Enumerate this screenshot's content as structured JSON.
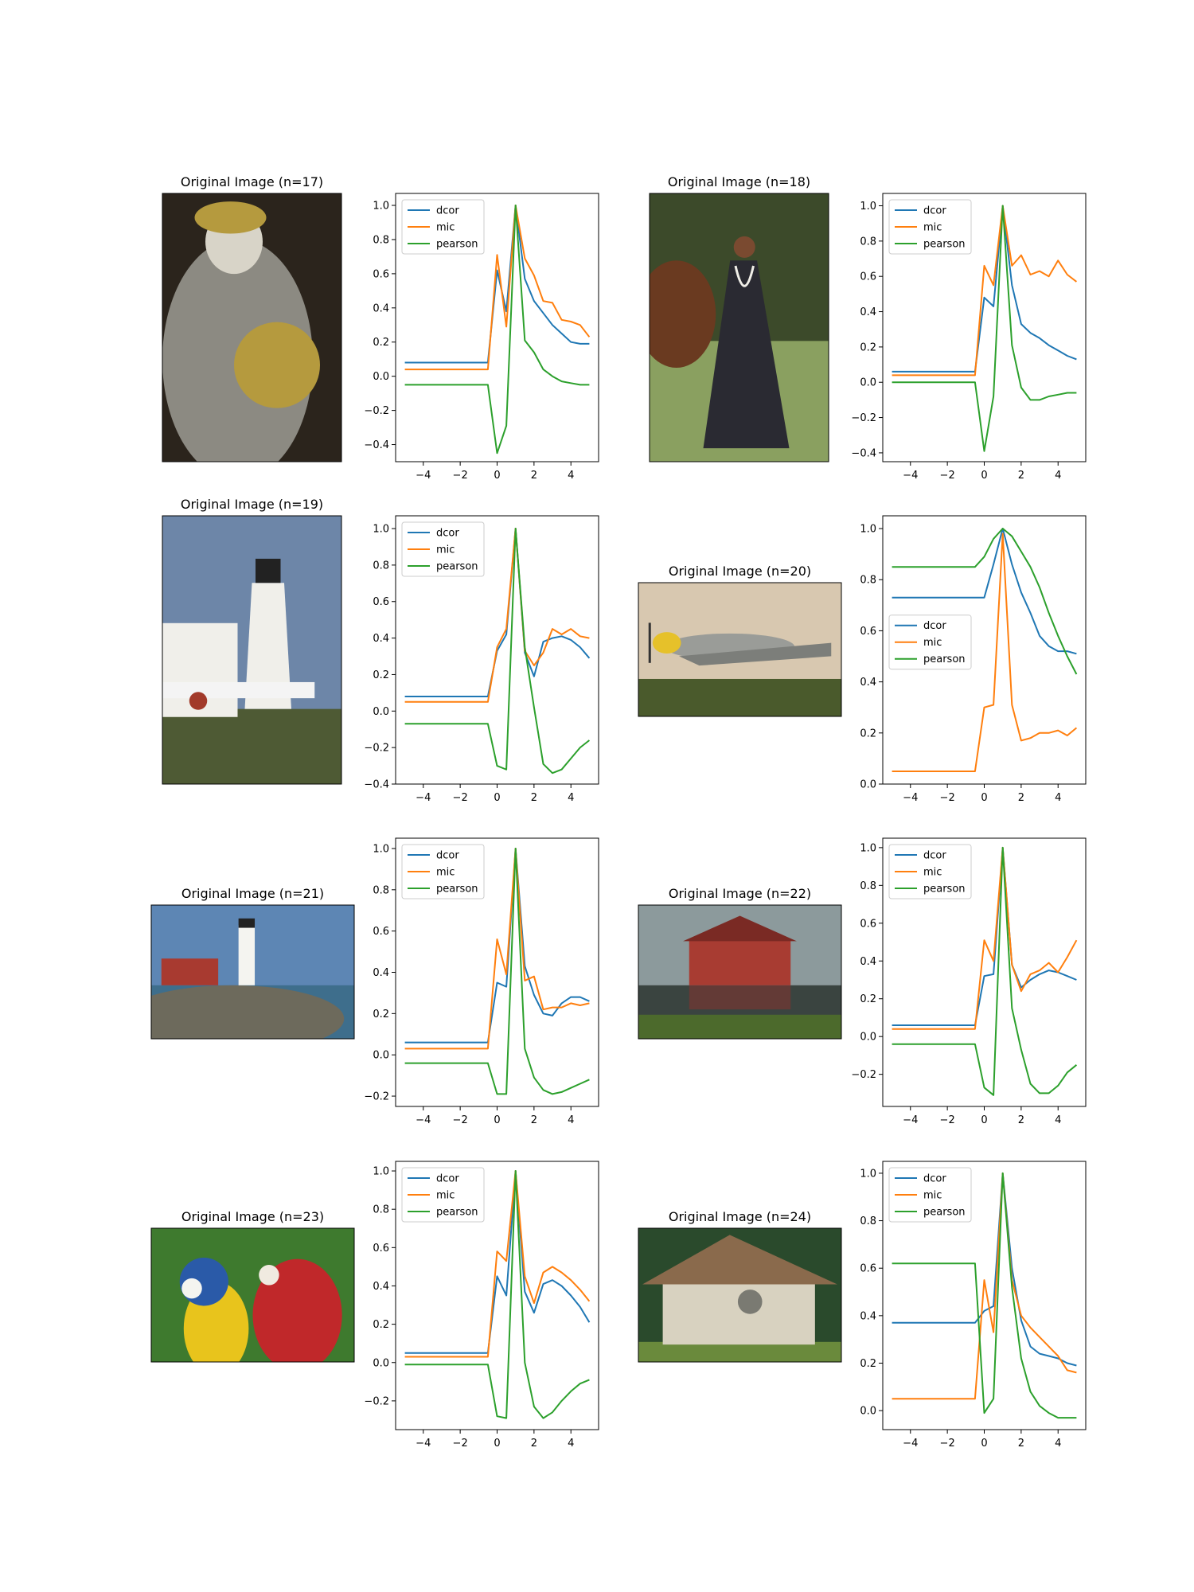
{
  "palette": {
    "dcor": "#1f77b4",
    "mic": "#ff7f0e",
    "pearson": "#2ca02c",
    "axis": "#000000",
    "background": "#ffffff"
  },
  "shared": {
    "x": [
      -5,
      -4.5,
      -4,
      -3.5,
      -3,
      -2.5,
      -2,
      -1.5,
      -1,
      -0.5,
      0,
      0.5,
      1,
      1.5,
      2,
      2.5,
      3,
      3.5,
      4,
      4.5,
      5
    ],
    "xticks": [
      -4,
      -2,
      0,
      2,
      4
    ],
    "xlim": [
      -5.5,
      5.5
    ],
    "series_names": [
      "dcor",
      "mic",
      "pearson"
    ]
  },
  "panels": [
    {
      "title": "Original Image (n=17)",
      "photo": {
        "icon": "statue-photo",
        "subject": "gold painted statue holding a golden globe",
        "colors": [
          "#2b241c",
          "#8c8a82",
          "#b59a3e",
          "#d8d4c8"
        ]
      },
      "chart_data": {
        "type": "line",
        "legend": "top-left",
        "ylim": [
          -0.5,
          1.07
        ],
        "yticks": [
          -0.4,
          -0.2,
          0.0,
          0.2,
          0.4,
          0.6,
          0.8,
          1.0
        ],
        "ytick_labels": [
          "−0.4",
          "−0.2",
          "0.0",
          "0.2",
          "0.4",
          "0.6",
          "0.8",
          "1.0"
        ],
        "series": [
          {
            "name": "dcor",
            "values": [
              0.08,
              0.08,
              0.08,
              0.08,
              0.08,
              0.08,
              0.08,
              0.08,
              0.08,
              0.08,
              0.62,
              0.38,
              1.0,
              0.57,
              0.44,
              0.37,
              0.3,
              0.25,
              0.2,
              0.19,
              0.19
            ]
          },
          {
            "name": "mic",
            "values": [
              0.04,
              0.04,
              0.04,
              0.04,
              0.04,
              0.04,
              0.04,
              0.04,
              0.04,
              0.04,
              0.71,
              0.29,
              1.0,
              0.69,
              0.59,
              0.44,
              0.43,
              0.33,
              0.32,
              0.3,
              0.23
            ]
          },
          {
            "name": "pearson",
            "values": [
              -0.05,
              -0.05,
              -0.05,
              -0.05,
              -0.05,
              -0.05,
              -0.05,
              -0.05,
              -0.05,
              -0.05,
              -0.45,
              -0.29,
              1.0,
              0.21,
              0.14,
              0.04,
              0.0,
              -0.03,
              -0.04,
              -0.05,
              -0.05
            ]
          }
        ]
      }
    },
    {
      "title": "Original Image (n=18)",
      "photo": {
        "icon": "woman-photo",
        "subject": "woman in dark dress with pearl necklace",
        "colors": [
          "#3c4a2a",
          "#6a3a20",
          "#2a2a32",
          "#8aa060"
        ]
      },
      "chart_data": {
        "type": "line",
        "legend": "top-left",
        "ylim": [
          -0.45,
          1.07
        ],
        "yticks": [
          -0.4,
          -0.2,
          0.0,
          0.2,
          0.4,
          0.6,
          0.8,
          1.0
        ],
        "ytick_labels": [
          "−0.4",
          "−0.2",
          "0.0",
          "0.2",
          "0.4",
          "0.6",
          "0.8",
          "1.0"
        ],
        "series": [
          {
            "name": "dcor",
            "values": [
              0.06,
              0.06,
              0.06,
              0.06,
              0.06,
              0.06,
              0.06,
              0.06,
              0.06,
              0.06,
              0.48,
              0.43,
              1.0,
              0.55,
              0.33,
              0.28,
              0.25,
              0.21,
              0.18,
              0.15,
              0.13
            ]
          },
          {
            "name": "mic",
            "values": [
              0.04,
              0.04,
              0.04,
              0.04,
              0.04,
              0.04,
              0.04,
              0.04,
              0.04,
              0.04,
              0.66,
              0.55,
              1.0,
              0.66,
              0.72,
              0.61,
              0.63,
              0.6,
              0.69,
              0.61,
              0.57
            ]
          },
          {
            "name": "pearson",
            "values": [
              0.0,
              0.0,
              0.0,
              0.0,
              0.0,
              0.0,
              0.0,
              0.0,
              0.0,
              0.0,
              -0.39,
              -0.08,
              1.0,
              0.21,
              -0.03,
              -0.1,
              -0.1,
              -0.08,
              -0.07,
              -0.06,
              -0.06
            ]
          }
        ]
      }
    },
    {
      "title": "Original Image (n=19)",
      "photo": {
        "icon": "lighthouse-photo",
        "subject": "white lighthouse with picket fence",
        "colors": [
          "#6d86a8",
          "#f0efea",
          "#4e5a34",
          "#a23a2a"
        ]
      },
      "chart_data": {
        "type": "line",
        "legend": "top-left",
        "ylim": [
          -0.4,
          1.07
        ],
        "yticks": [
          -0.4,
          -0.2,
          0.0,
          0.2,
          0.4,
          0.6,
          0.8,
          1.0
        ],
        "ytick_labels": [
          "−0.4",
          "−0.2",
          "0.0",
          "0.2",
          "0.4",
          "0.6",
          "0.8",
          "1.0"
        ],
        "series": [
          {
            "name": "dcor",
            "values": [
              0.08,
              0.08,
              0.08,
              0.08,
              0.08,
              0.08,
              0.08,
              0.08,
              0.08,
              0.08,
              0.33,
              0.42,
              1.0,
              0.32,
              0.19,
              0.38,
              0.4,
              0.41,
              0.39,
              0.35,
              0.29
            ]
          },
          {
            "name": "mic",
            "values": [
              0.05,
              0.05,
              0.05,
              0.05,
              0.05,
              0.05,
              0.05,
              0.05,
              0.05,
              0.05,
              0.35,
              0.45,
              1.0,
              0.33,
              0.25,
              0.32,
              0.45,
              0.42,
              0.45,
              0.41,
              0.4
            ]
          },
          {
            "name": "pearson",
            "values": [
              -0.07,
              -0.07,
              -0.07,
              -0.07,
              -0.07,
              -0.07,
              -0.07,
              -0.07,
              -0.07,
              -0.07,
              -0.3,
              -0.32,
              1.0,
              0.35,
              0.02,
              -0.29,
              -0.34,
              -0.32,
              -0.26,
              -0.2,
              -0.16
            ]
          }
        ]
      }
    },
    {
      "title": "Original Image (n=20)",
      "photo": {
        "icon": "airplane-photo",
        "subject": "propeller fighter plane with yellow nose on grass",
        "colors": [
          "#d8c8b0",
          "#8b8f7a",
          "#4a5a2c",
          "#e6c12a"
        ]
      },
      "chart_data": {
        "type": "line",
        "legend": "center-left",
        "ylim": [
          0.0,
          1.05
        ],
        "yticks": [
          0.0,
          0.2,
          0.4,
          0.6,
          0.8,
          1.0
        ],
        "ytick_labels": [
          "0.0",
          "0.2",
          "0.4",
          "0.6",
          "0.8",
          "1.0"
        ],
        "series": [
          {
            "name": "dcor",
            "values": [
              0.73,
              0.73,
              0.73,
              0.73,
              0.73,
              0.73,
              0.73,
              0.73,
              0.73,
              0.73,
              0.73,
              0.86,
              1.0,
              0.86,
              0.75,
              0.67,
              0.58,
              0.54,
              0.52,
              0.52,
              0.51
            ]
          },
          {
            "name": "mic",
            "values": [
              0.05,
              0.05,
              0.05,
              0.05,
              0.05,
              0.05,
              0.05,
              0.05,
              0.05,
              0.05,
              0.3,
              0.31,
              0.98,
              0.31,
              0.17,
              0.18,
              0.2,
              0.2,
              0.21,
              0.19,
              0.22
            ]
          },
          {
            "name": "pearson",
            "values": [
              0.85,
              0.85,
              0.85,
              0.85,
              0.85,
              0.85,
              0.85,
              0.85,
              0.85,
              0.85,
              0.89,
              0.96,
              1.0,
              0.97,
              0.91,
              0.85,
              0.77,
              0.67,
              0.58,
              0.5,
              0.43
            ]
          }
        ]
      }
    },
    {
      "title": "Original Image (n=21)",
      "photo": {
        "icon": "coastal-lighthouse-photo",
        "subject": "lighthouse on rocky coast",
        "colors": [
          "#5d86b4",
          "#f4f4f0",
          "#6d6a5c",
          "#3e6e8c"
        ]
      },
      "chart_data": {
        "type": "line",
        "legend": "top-left",
        "ylim": [
          -0.25,
          1.05
        ],
        "yticks": [
          -0.2,
          0.0,
          0.2,
          0.4,
          0.6,
          0.8,
          1.0
        ],
        "ytick_labels": [
          "−0.2",
          "0.0",
          "0.2",
          "0.4",
          "0.6",
          "0.8",
          "1.0"
        ],
        "series": [
          {
            "name": "dcor",
            "values": [
              0.06,
              0.06,
              0.06,
              0.06,
              0.06,
              0.06,
              0.06,
              0.06,
              0.06,
              0.06,
              0.35,
              0.33,
              1.0,
              0.43,
              0.29,
              0.2,
              0.19,
              0.25,
              0.28,
              0.28,
              0.26
            ]
          },
          {
            "name": "mic",
            "values": [
              0.03,
              0.03,
              0.03,
              0.03,
              0.03,
              0.03,
              0.03,
              0.03,
              0.03,
              0.03,
              0.56,
              0.39,
              1.0,
              0.36,
              0.38,
              0.22,
              0.23,
              0.23,
              0.25,
              0.24,
              0.25
            ]
          },
          {
            "name": "pearson",
            "values": [
              -0.04,
              -0.04,
              -0.04,
              -0.04,
              -0.04,
              -0.04,
              -0.04,
              -0.04,
              -0.04,
              -0.04,
              -0.19,
              -0.19,
              1.0,
              0.03,
              -0.11,
              -0.17,
              -0.19,
              -0.18,
              -0.16,
              -0.14,
              -0.12
            ]
          }
        ]
      }
    },
    {
      "title": "Original Image (n=22)",
      "photo": {
        "icon": "red-barn-photo",
        "subject": "red barn reflected in a pond",
        "colors": [
          "#8c9a9c",
          "#a83c32",
          "#4c6a2c",
          "#3a4440"
        ]
      },
      "chart_data": {
        "type": "line",
        "legend": "top-left",
        "ylim": [
          -0.37,
          1.05
        ],
        "yticks": [
          -0.2,
          0.0,
          0.2,
          0.4,
          0.6,
          0.8,
          1.0
        ],
        "ytick_labels": [
          "−0.2",
          "0.0",
          "0.2",
          "0.4",
          "0.6",
          "0.8",
          "1.0"
        ],
        "series": [
          {
            "name": "dcor",
            "values": [
              0.06,
              0.06,
              0.06,
              0.06,
              0.06,
              0.06,
              0.06,
              0.06,
              0.06,
              0.06,
              0.32,
              0.33,
              1.0,
              0.38,
              0.26,
              0.3,
              0.33,
              0.35,
              0.34,
              0.32,
              0.3
            ]
          },
          {
            "name": "mic",
            "values": [
              0.04,
              0.04,
              0.04,
              0.04,
              0.04,
              0.04,
              0.04,
              0.04,
              0.04,
              0.04,
              0.51,
              0.4,
              1.0,
              0.38,
              0.24,
              0.33,
              0.35,
              0.39,
              0.34,
              0.42,
              0.51
            ]
          },
          {
            "name": "pearson",
            "values": [
              -0.04,
              -0.04,
              -0.04,
              -0.04,
              -0.04,
              -0.04,
              -0.04,
              -0.04,
              -0.04,
              -0.04,
              -0.27,
              -0.31,
              1.0,
              0.15,
              -0.07,
              -0.25,
              -0.3,
              -0.3,
              -0.26,
              -0.19,
              -0.15
            ]
          }
        ]
      }
    },
    {
      "title": "Original Image (n=23)",
      "photo": {
        "icon": "parrots-photo",
        "subject": "blue-and-yellow and scarlet macaws",
        "colors": [
          "#3e7a2e",
          "#e8c41c",
          "#2a5aa8",
          "#c0282a"
        ]
      },
      "chart_data": {
        "type": "line",
        "legend": "top-left",
        "ylim": [
          -0.35,
          1.05
        ],
        "yticks": [
          -0.2,
          0.0,
          0.2,
          0.4,
          0.6,
          0.8,
          1.0
        ],
        "ytick_labels": [
          "−0.2",
          "0.0",
          "0.2",
          "0.4",
          "0.6",
          "0.8",
          "1.0"
        ],
        "series": [
          {
            "name": "dcor",
            "values": [
              0.05,
              0.05,
              0.05,
              0.05,
              0.05,
              0.05,
              0.05,
              0.05,
              0.05,
              0.05,
              0.45,
              0.35,
              1.0,
              0.37,
              0.26,
              0.41,
              0.43,
              0.4,
              0.35,
              0.29,
              0.21
            ]
          },
          {
            "name": "mic",
            "values": [
              0.03,
              0.03,
              0.03,
              0.03,
              0.03,
              0.03,
              0.03,
              0.03,
              0.03,
              0.03,
              0.58,
              0.53,
              1.0,
              0.45,
              0.31,
              0.47,
              0.5,
              0.47,
              0.43,
              0.38,
              0.32
            ]
          },
          {
            "name": "pearson",
            "values": [
              -0.01,
              -0.01,
              -0.01,
              -0.01,
              -0.01,
              -0.01,
              -0.01,
              -0.01,
              -0.01,
              -0.01,
              -0.28,
              -0.29,
              1.0,
              0.0,
              -0.23,
              -0.29,
              -0.26,
              -0.2,
              -0.15,
              -0.11,
              -0.09
            ]
          }
        ]
      }
    },
    {
      "title": "Original Image (n=24)",
      "photo": {
        "icon": "chalet-photo",
        "subject": "painted alpine chalet with wooden roof",
        "colors": [
          "#2a4a2c",
          "#8a6a4c",
          "#d8d2c0",
          "#6a8a3c"
        ]
      },
      "chart_data": {
        "type": "line",
        "legend": "top-left",
        "ylim": [
          -0.08,
          1.05
        ],
        "yticks": [
          0.0,
          0.2,
          0.4,
          0.6,
          0.8,
          1.0
        ],
        "ytick_labels": [
          "0.0",
          "0.2",
          "0.4",
          "0.6",
          "0.8",
          "1.0"
        ],
        "series": [
          {
            "name": "dcor",
            "values": [
              0.37,
              0.37,
              0.37,
              0.37,
              0.37,
              0.37,
              0.37,
              0.37,
              0.37,
              0.37,
              0.42,
              0.44,
              1.0,
              0.6,
              0.38,
              0.27,
              0.24,
              0.23,
              0.22,
              0.2,
              0.19
            ]
          },
          {
            "name": "mic",
            "values": [
              0.05,
              0.05,
              0.05,
              0.05,
              0.05,
              0.05,
              0.05,
              0.05,
              0.05,
              0.05,
              0.55,
              0.33,
              1.0,
              0.55,
              0.4,
              0.35,
              0.31,
              0.27,
              0.23,
              0.17,
              0.16
            ]
          },
          {
            "name": "pearson",
            "values": [
              0.62,
              0.62,
              0.62,
              0.62,
              0.62,
              0.62,
              0.62,
              0.62,
              0.62,
              0.62,
              -0.01,
              0.05,
              1.0,
              0.52,
              0.22,
              0.08,
              0.02,
              -0.01,
              -0.03,
              -0.03,
              -0.03
            ]
          }
        ]
      }
    }
  ]
}
